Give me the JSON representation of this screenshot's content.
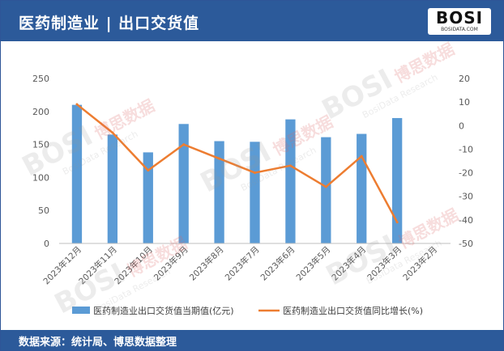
{
  "header": {
    "title": "医药制造业 | 出口交货值"
  },
  "logo": {
    "text": "BOSI",
    "sub": "BOSIDATA.COM"
  },
  "watermark": {
    "brand": "BOSI",
    "cn": "博思数据",
    "en": "BosiData Research"
  },
  "footer": {
    "source": "数据来源：统计局、博思数据整理"
  },
  "colors": {
    "bar": "#5b9bd5",
    "line": "#ed7d31",
    "header": "#2c5a9a"
  },
  "chart_data": {
    "type": "bar",
    "categories": [
      "2023年12月",
      "2023年11月",
      "2023年10月",
      "2023年9月",
      "2023年8月",
      "2023年7月",
      "2023年6月",
      "2023年5月",
      "2023年4月",
      "2023年3月",
      "2023年2月"
    ],
    "series": [
      {
        "name": "医药制造业出口交货值当期值(亿元)",
        "type": "bar",
        "axis": "left",
        "values": [
          210,
          165,
          138,
          181,
          155,
          154,
          188,
          161,
          166,
          190,
          null
        ]
      },
      {
        "name": "医药制造业出口交货值同比增长(%)",
        "type": "line",
        "axis": "right",
        "values": [
          9,
          -3,
          -19,
          -8,
          -14,
          -20,
          -17,
          -26,
          -13,
          -41,
          null
        ]
      }
    ],
    "ylim_left": [
      0,
      250
    ],
    "yticks_left": [
      "0",
      "50",
      "100",
      "150",
      "200",
      "250"
    ],
    "ylim_right": [
      -50,
      20
    ],
    "yticks_right": [
      "-50",
      "-40",
      "-30",
      "-20",
      "-10",
      "0",
      "10",
      "20"
    ],
    "grid": false,
    "legend": "bottom"
  }
}
